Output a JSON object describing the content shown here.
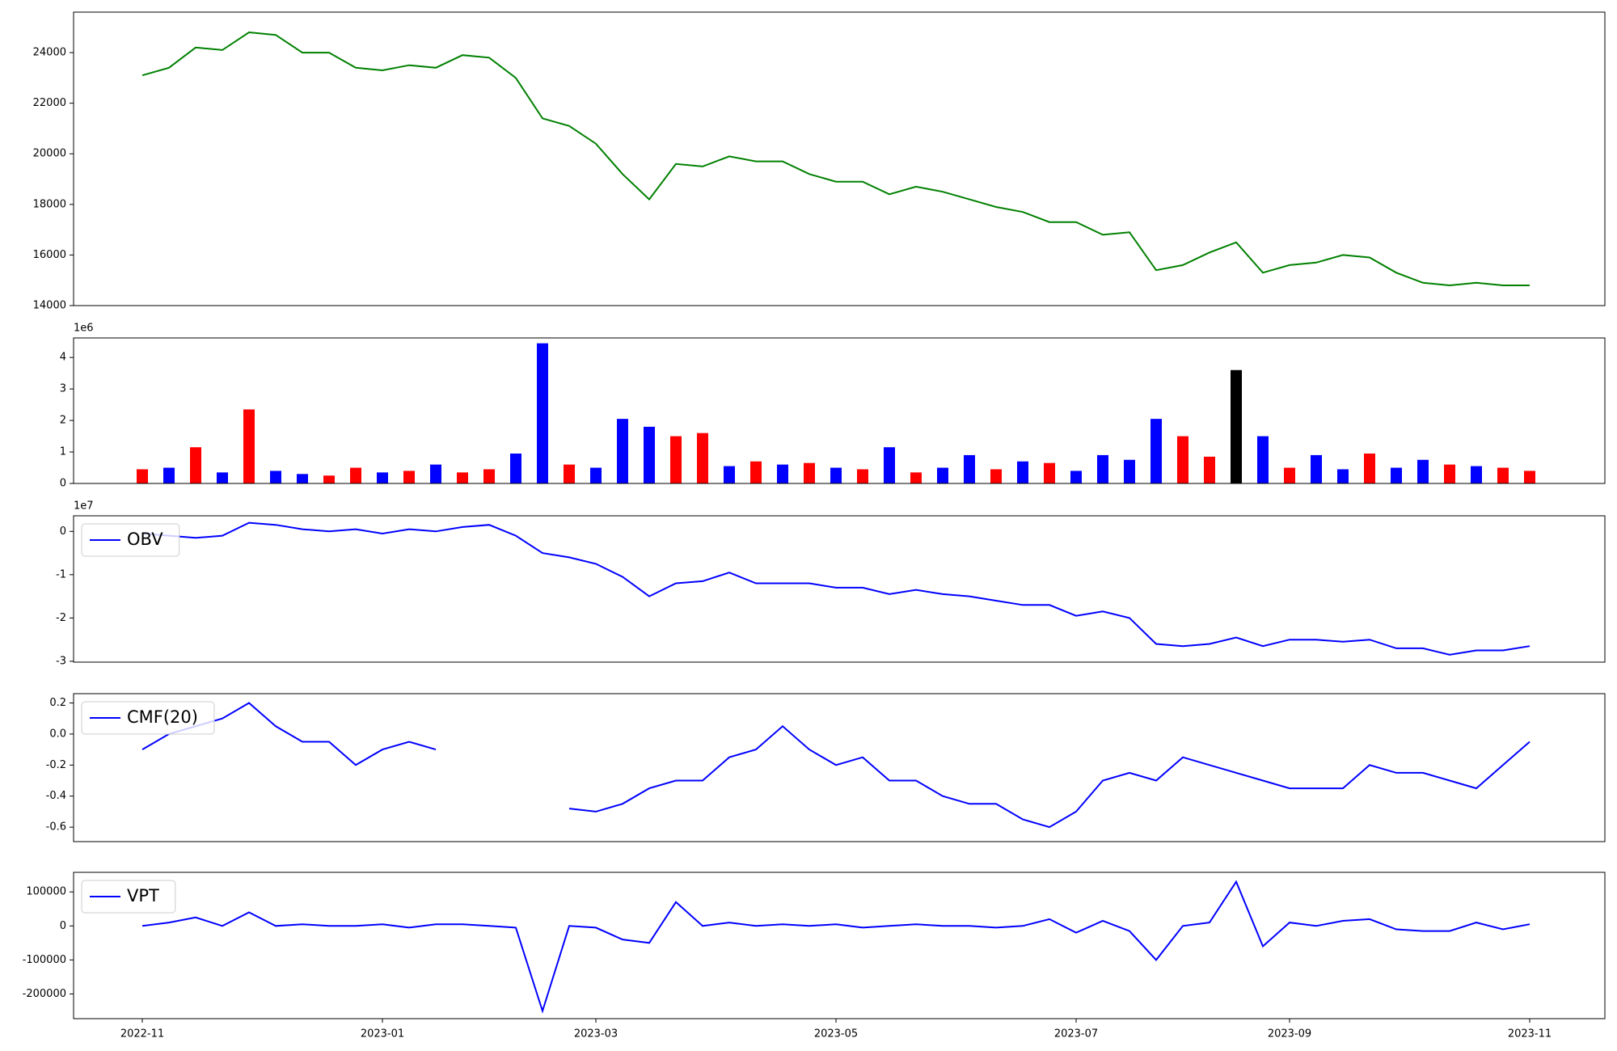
{
  "chart_data": [
    {
      "type": "line",
      "color": "green",
      "values": [
        23100,
        23400,
        24200,
        24100,
        24800,
        24700,
        24000,
        24000,
        23400,
        23300,
        23500,
        23400,
        23900,
        23800,
        23000,
        21400,
        21100,
        20400,
        19200,
        18200,
        19600,
        19500,
        19900,
        19700,
        19700,
        19200,
        18900,
        18900,
        18400,
        18700,
        18500,
        18200,
        17900,
        17700,
        17300,
        17300,
        16800,
        16900,
        15400,
        15600,
        16100,
        16500,
        15300,
        15600,
        15700,
        16000,
        15900,
        15300,
        14900,
        14800,
        14900,
        14800,
        14800
      ],
      "ylim": [
        14000,
        25600
      ],
      "yticks": [
        14000,
        16000,
        18000,
        20000,
        22000,
        24000
      ]
    },
    {
      "type": "bar",
      "offset_label": "1e6",
      "values": [
        0.45,
        0.5,
        1.15,
        0.35,
        2.35,
        0.4,
        0.3,
        0.25,
        0.5,
        0.35,
        0.4,
        0.6,
        0.35,
        0.45,
        0.95,
        4.45,
        0.6,
        0.5,
        2.05,
        1.8,
        1.5,
        1.6,
        0.55,
        0.7,
        0.6,
        0.65,
        0.5,
        0.45,
        1.15,
        0.35,
        0.5,
        0.9,
        0.45,
        0.7,
        0.65,
        0.4,
        0.9,
        0.75,
        2.05,
        1.5,
        0.85,
        3.6,
        1.5,
        0.5,
        0.9,
        0.45,
        0.95,
        0.5,
        0.75,
        0.6,
        0.55,
        0.5,
        0.4
      ],
      "colors": [
        "red",
        "blue",
        "red",
        "blue",
        "red",
        "blue",
        "blue",
        "red",
        "red",
        "blue",
        "red",
        "blue",
        "red",
        "red",
        "blue",
        "blue",
        "red",
        "blue",
        "blue",
        "blue",
        "red",
        "red",
        "blue",
        "red",
        "blue",
        "red",
        "blue",
        "red",
        "blue",
        "red",
        "blue",
        "blue",
        "red",
        "blue",
        "red",
        "blue",
        "blue",
        "blue",
        "blue",
        "red",
        "red",
        "black",
        "blue",
        "red",
        "blue",
        "blue",
        "red",
        "blue",
        "blue",
        "red",
        "blue",
        "red",
        "red"
      ],
      "ylim": [
        0,
        4.62
      ],
      "yticks": [
        0,
        1,
        2,
        3,
        4
      ]
    },
    {
      "type": "line",
      "offset_label": "1e7",
      "legend": "upper left",
      "series": [
        {
          "name": "OBV",
          "color": "blue",
          "values": [
            -0.05,
            -0.1,
            -0.15,
            -0.1,
            0.2,
            0.15,
            0.05,
            0.0,
            0.05,
            -0.05,
            0.05,
            0.0,
            0.1,
            0.15,
            -0.1,
            -0.5,
            -0.6,
            -0.75,
            -1.05,
            -1.5,
            -1.2,
            -1.15,
            -0.95,
            -1.2,
            -1.2,
            -1.2,
            -1.3,
            -1.3,
            -1.45,
            -1.35,
            -1.45,
            -1.5,
            -1.6,
            -1.7,
            -1.7,
            -1.95,
            -1.85,
            -2.0,
            -2.6,
            -2.65,
            -2.6,
            -2.45,
            -2.65,
            -2.5,
            -2.5,
            -2.55,
            -2.5,
            -2.7,
            -2.7,
            -2.85,
            -2.75,
            -2.75,
            -2.65
          ]
        }
      ],
      "ylim": [
        -3.02,
        0.36
      ],
      "yticks": [
        -3,
        -2,
        -1,
        0
      ]
    },
    {
      "type": "line",
      "legend": "upper left",
      "series": [
        {
          "name": "CMF(20)",
          "color": "blue",
          "values": [
            -0.1,
            0.0,
            0.05,
            0.1,
            0.2,
            0.05,
            -0.05,
            -0.05,
            -0.2,
            -0.1,
            -0.05,
            -0.1,
            null,
            null,
            null,
            null,
            -0.48,
            -0.5,
            -0.45,
            -0.35,
            -0.3,
            -0.3,
            -0.15,
            -0.1,
            0.05,
            -0.1,
            -0.2,
            -0.15,
            -0.3,
            -0.3,
            -0.4,
            -0.45,
            -0.45,
            -0.55,
            -0.6,
            -0.5,
            -0.3,
            -0.25,
            -0.3,
            -0.15,
            -0.2,
            -0.25,
            -0.3,
            -0.35,
            -0.35,
            -0.35,
            -0.2,
            -0.25,
            -0.25,
            -0.3,
            -0.35,
            -0.2,
            -0.05
          ]
        }
      ],
      "ylim": [
        -0.693,
        0.26
      ],
      "yticks": [
        -0.6,
        -0.4,
        -0.2,
        {
          "value": 0,
          "label": "0.0"
        },
        0.2
      ]
    },
    {
      "type": "line",
      "legend": "upper left",
      "series": [
        {
          "name": "VPT",
          "color": "blue",
          "values": [
            0,
            10000,
            25000,
            0,
            40000,
            0,
            5000,
            0,
            0,
            5000,
            -5000,
            5000,
            5000,
            0,
            -5000,
            -250000,
            0,
            -5000,
            -40000,
            -50000,
            70000,
            0,
            10000,
            0,
            5000,
            0,
            5000,
            -5000,
            0,
            5000,
            0,
            0,
            -5000,
            0,
            20000,
            -20000,
            15000,
            -15000,
            -100000,
            0,
            10000,
            130000,
            -60000,
            10000,
            0,
            15000,
            20000,
            -10000,
            -15000,
            -15000,
            10000,
            -10000,
            5000
          ]
        }
      ],
      "ylim": [
        -272700,
        157600
      ],
      "yticks": [
        -200000,
        -100000,
        0,
        100000
      ],
      "x": [
        "2022-11",
        null,
        null,
        null,
        null,
        null,
        null,
        null,
        null,
        "2023-01",
        null,
        null,
        null,
        null,
        null,
        null,
        null,
        "2023-03",
        null,
        null,
        null,
        null,
        null,
        null,
        null,
        null,
        "2023-05",
        null,
        null,
        null,
        null,
        null,
        null,
        null,
        null,
        "2023-07",
        null,
        null,
        null,
        null,
        null,
        null,
        null,
        "2023-09",
        null,
        null,
        null,
        null,
        null,
        null,
        null,
        null,
        "2023-11"
      ]
    }
  ]
}
